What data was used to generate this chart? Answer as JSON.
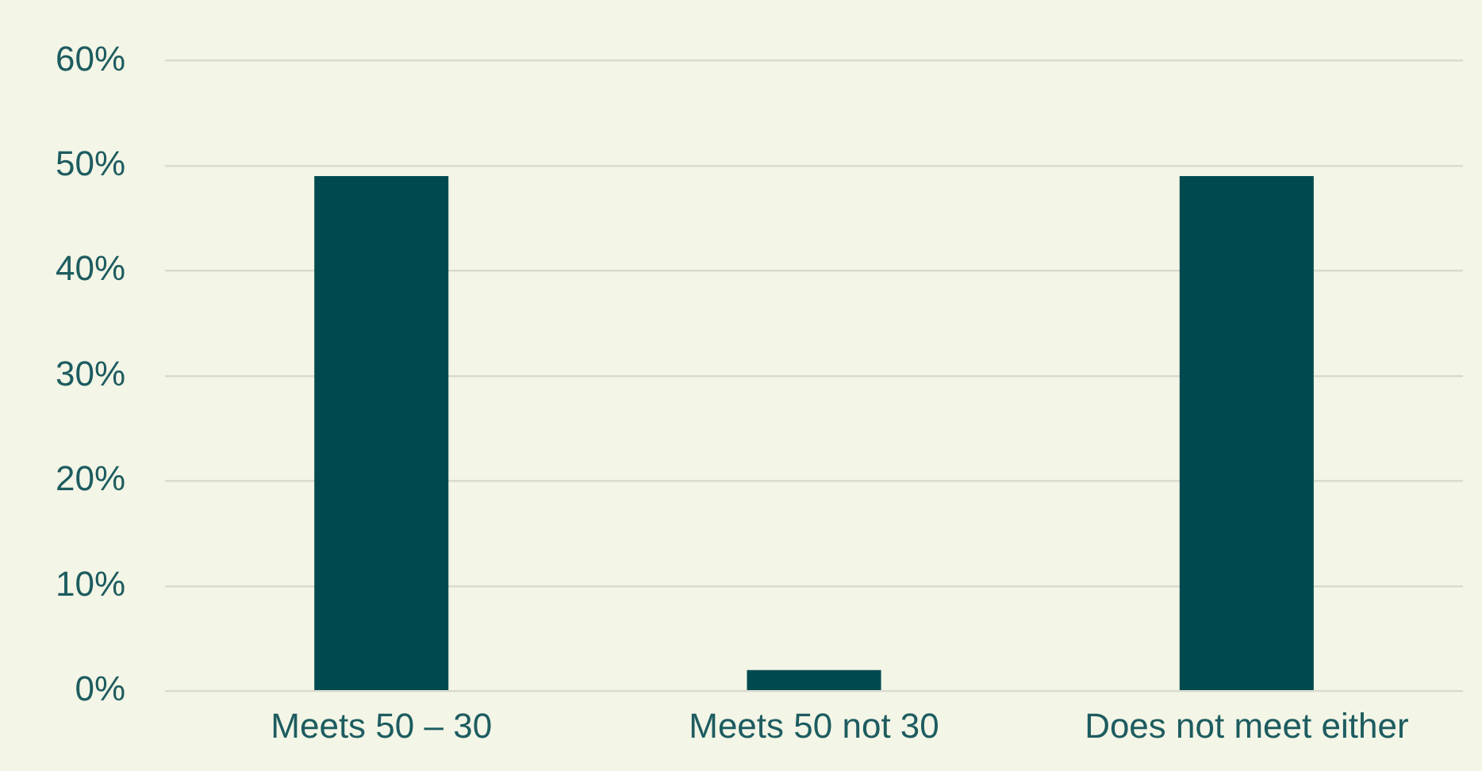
{
  "chart_data": {
    "type": "bar",
    "categories": [
      "Meets 50 – 30",
      "Meets 50 not 30",
      "Does not meet either"
    ],
    "values": [
      49,
      2,
      49
    ],
    "color": "#004a4f",
    "ylim": [
      0,
      60
    ],
    "yticks": [
      {
        "value": 0,
        "label": "0%"
      },
      {
        "value": 10,
        "label": "10%"
      },
      {
        "value": 20,
        "label": "20%"
      },
      {
        "value": 30,
        "label": "30%"
      },
      {
        "value": 40,
        "label": "40%"
      },
      {
        "value": 50,
        "label": "50%"
      },
      {
        "value": 60,
        "label": "60%"
      }
    ],
    "grid": "y",
    "legend": false
  }
}
